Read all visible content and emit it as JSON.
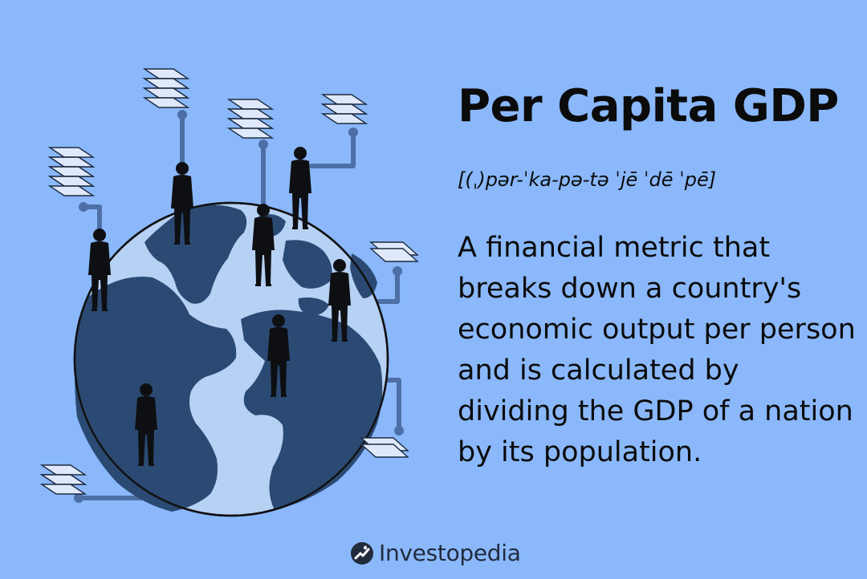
{
  "title": "Per Capita GDP",
  "pronunciation": "[(ˌ)pər-ˈka-pə-tə ˈjē ˈdē ˈpē]",
  "definition": "A financial metric that breaks down a country's economic output per person and is calculated by dividing the GDP of a nation by its population.",
  "brand": {
    "name": "Investopedia"
  },
  "colors": {
    "background": "#8ab8fb",
    "globe": "#2b4a73",
    "ocean": "#b7d1f5",
    "connector": "#4e6fa6",
    "text": "#0b0b0b"
  }
}
